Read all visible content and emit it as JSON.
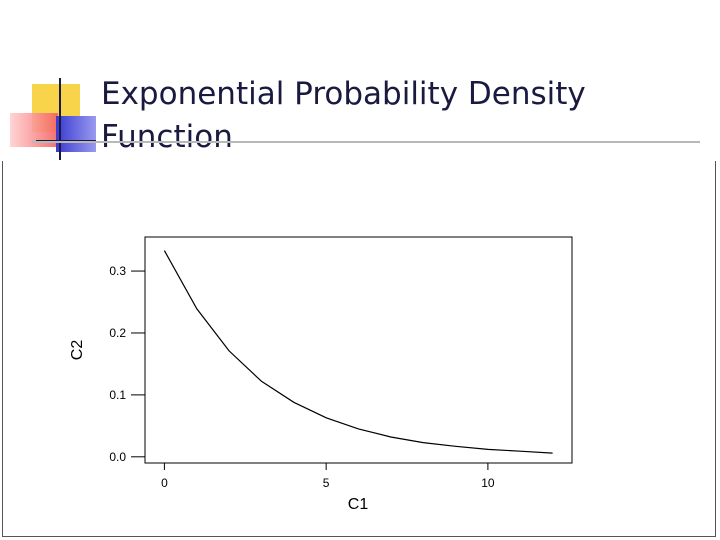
{
  "slide": {
    "title_line1": "Exponential Probability Density",
    "title_line2": "Function"
  },
  "colors": {
    "title": "#1a1a40",
    "deco_yellow": "#f7d44a",
    "deco_red": "#f36060",
    "deco_blue": "#3a3ad0",
    "rule": "#b8b8b8",
    "curve": "#000000"
  },
  "chart_data": {
    "type": "line",
    "xlabel": "C1",
    "ylabel": "C2",
    "xlim": [
      -0.6,
      12.6
    ],
    "ylim": [
      -0.01,
      0.355
    ],
    "xticks": [
      0,
      5,
      10
    ],
    "yticks": [
      0.0,
      0.1,
      0.2,
      0.3
    ],
    "ytick_labels": [
      "0.0",
      "0.1",
      "0.2",
      "0.3"
    ],
    "grid": false,
    "series": [
      {
        "x": [
          0,
          1,
          2,
          3,
          4,
          5,
          6,
          7,
          8,
          9,
          10,
          11,
          12
        ],
        "y": [
          0.333,
          0.239,
          0.171,
          0.122,
          0.088,
          0.063,
          0.045,
          0.032,
          0.023,
          0.017,
          0.012,
          0.009,
          0.006
        ]
      }
    ]
  }
}
